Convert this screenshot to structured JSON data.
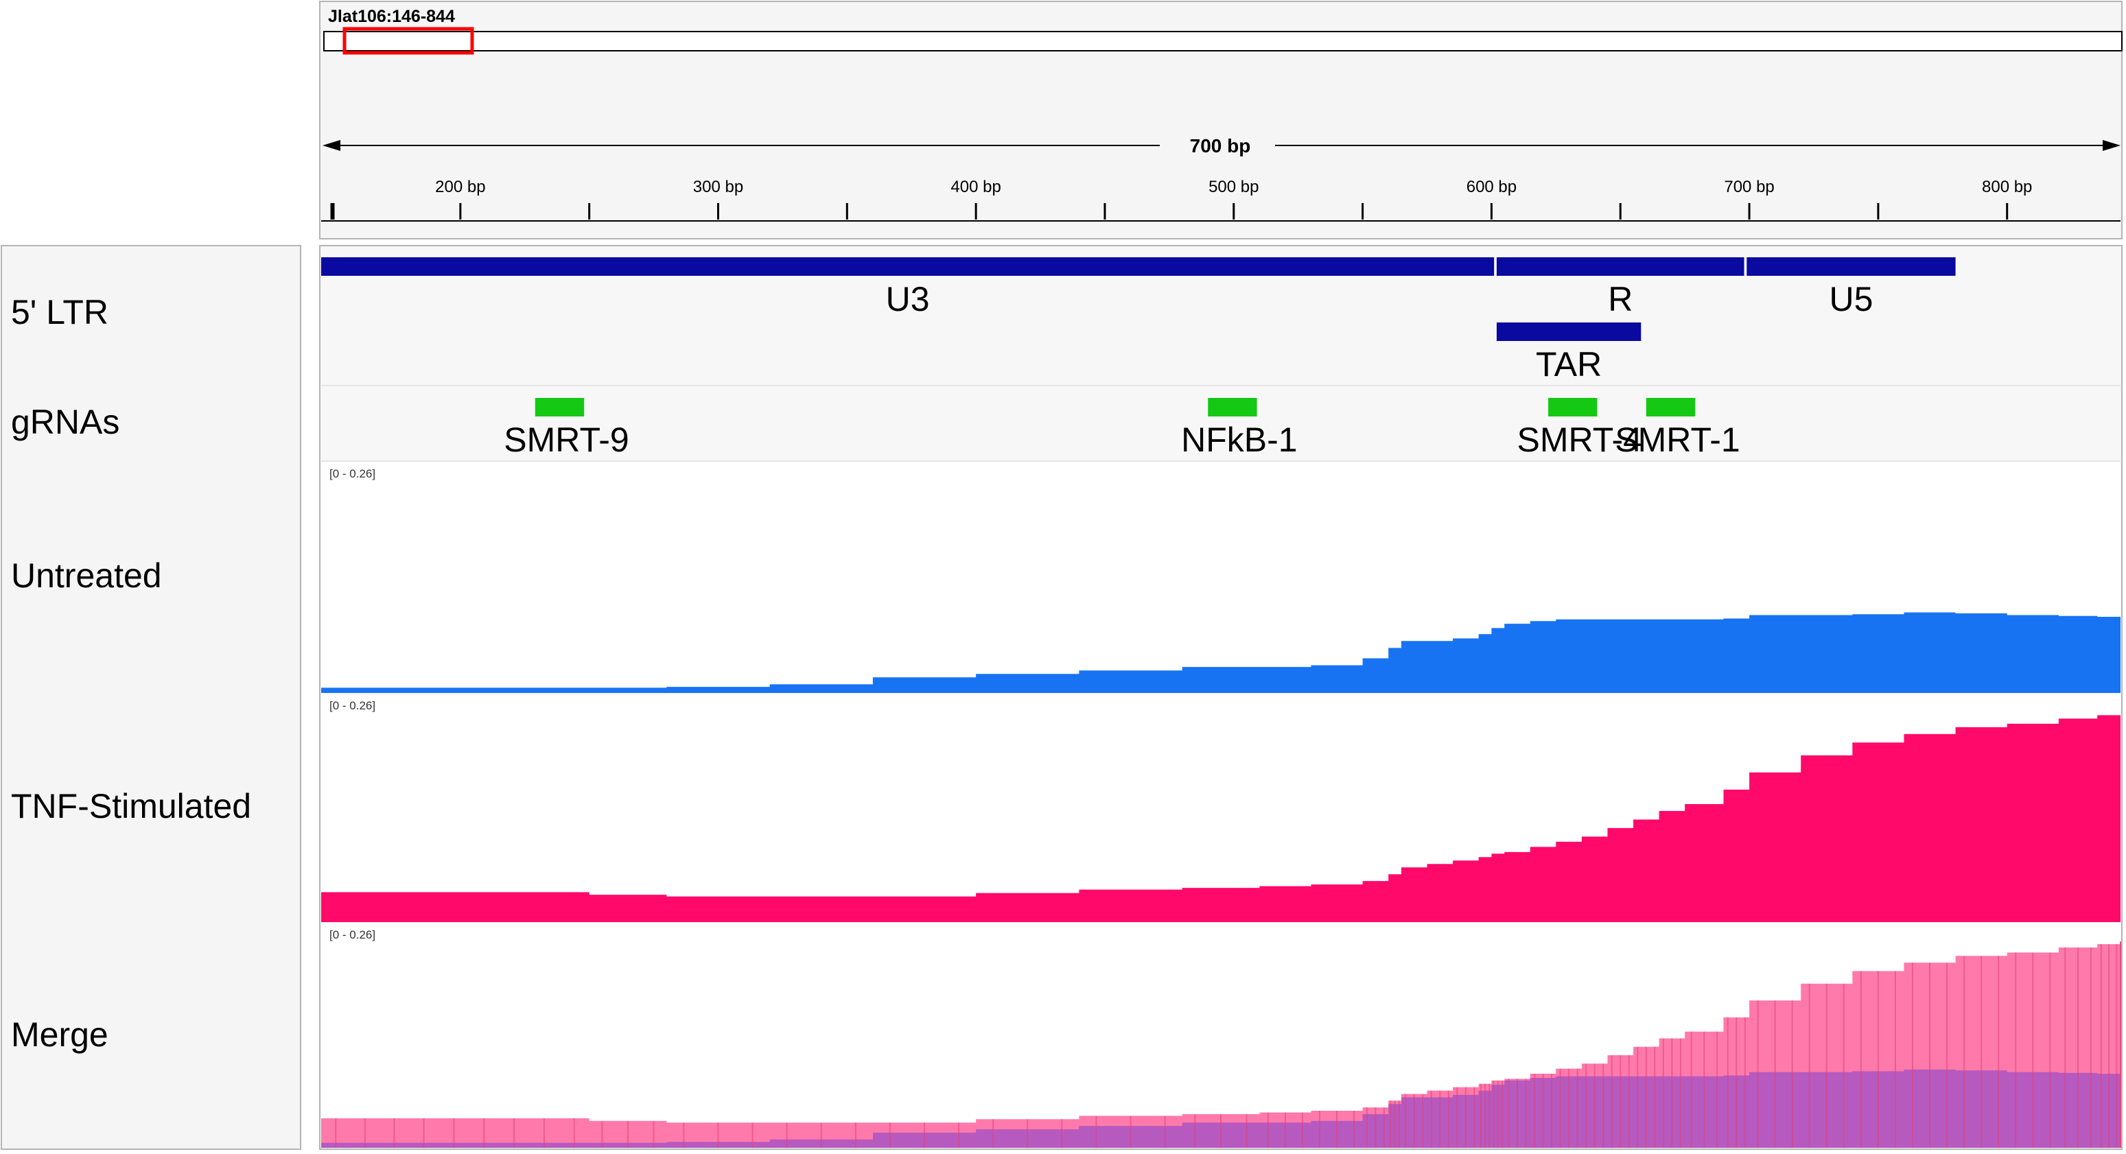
{
  "locus": "Jlat106:146-844",
  "ruler": {
    "span_label": "700 bp",
    "ticks": [
      "200 bp",
      "300 bp",
      "400 bp",
      "500 bp",
      "600 bp",
      "700 bp",
      "800 bp"
    ],
    "view_start_bp": 146,
    "view_end_bp": 844,
    "minor_tick_step_bp": 50
  },
  "tracks": {
    "ltr": {
      "label": "5' LTR",
      "features": [
        {
          "name": "U3",
          "start": 146,
          "end": 601
        },
        {
          "name": "R",
          "start": 602,
          "end": 698
        },
        {
          "name": "U5",
          "start": 699,
          "end": 780
        }
      ],
      "sub_feature": {
        "name": "TAR",
        "start": 602,
        "end": 658
      }
    },
    "grnas": {
      "label": "gRNAs",
      "items": [
        {
          "name": "SMRT-9",
          "start": 229,
          "end": 248
        },
        {
          "name": "NFkB-1",
          "start": 490,
          "end": 509
        },
        {
          "name": "SMRT-4",
          "start": 622,
          "end": 641
        },
        {
          "name": "SMRT-1",
          "start": 660,
          "end": 679
        }
      ]
    },
    "untreated": {
      "label": "Untreated",
      "range": "[0 - 0.26]"
    },
    "tnf": {
      "label": "TNF-Stimulated",
      "range": "[0 - 0.26]"
    },
    "merge": {
      "label": "Merge",
      "range": "[0 - 0.26]"
    }
  },
  "colors": {
    "feature_blue": "#0a0aa0",
    "grna_green": "#14c814",
    "untreated_blue": "#1773f2",
    "tnf_pink": "#ff0a6a",
    "merge_pink": "#ff7aaa",
    "merge_purple": "#9a52c8",
    "roi_red": "#ff0000"
  },
  "chart_data": {
    "type": "area",
    "x": [
      146,
      180,
      215,
      250,
      280,
      320,
      360,
      400,
      440,
      480,
      510,
      530,
      550,
      560,
      565,
      575,
      585,
      595,
      600,
      605,
      615,
      625,
      635,
      645,
      655,
      665,
      675,
      690,
      700,
      720,
      740,
      760,
      780,
      800,
      820,
      835,
      844
    ],
    "series": [
      {
        "name": "Untreated",
        "values": [
          0.006,
          0.006,
          0.006,
          0.006,
          0.007,
          0.01,
          0.018,
          0.022,
          0.026,
          0.03,
          0.03,
          0.032,
          0.04,
          0.052,
          0.06,
          0.06,
          0.063,
          0.068,
          0.075,
          0.08,
          0.083,
          0.085,
          0.085,
          0.085,
          0.085,
          0.085,
          0.085,
          0.086,
          0.09,
          0.09,
          0.091,
          0.093,
          0.092,
          0.09,
          0.089,
          0.088,
          0.088
        ]
      },
      {
        "name": "TNF-Stimulated",
        "values": [
          0.035,
          0.035,
          0.035,
          0.032,
          0.03,
          0.03,
          0.03,
          0.034,
          0.038,
          0.04,
          0.042,
          0.044,
          0.048,
          0.056,
          0.064,
          0.068,
          0.072,
          0.076,
          0.08,
          0.082,
          0.088,
          0.094,
          0.1,
          0.11,
          0.12,
          0.13,
          0.138,
          0.155,
          0.175,
          0.195,
          0.21,
          0.22,
          0.228,
          0.232,
          0.238,
          0.242,
          0.245
        ]
      }
    ],
    "ylim": [
      0,
      0.26
    ]
  }
}
